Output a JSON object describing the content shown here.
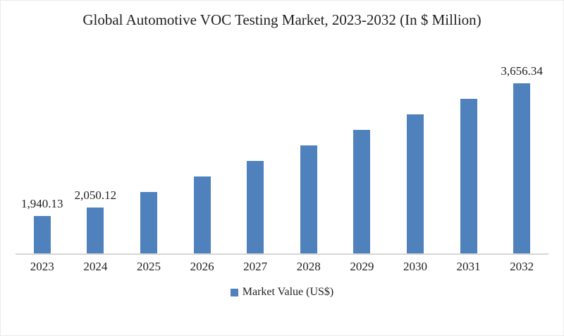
{
  "chart": {
    "title": "Global Automotive VOC Testing Market, 2023-2032 (In $ Million)",
    "legend": {
      "label": "Market Value (US$)"
    },
    "colors": {
      "bar": "#4F81BD",
      "axis_line": "#d6d6d6",
      "text": "#1f1f1f",
      "background": "#ffffff"
    }
  },
  "chart_data": {
    "type": "bar",
    "title": "Global Automotive VOC Testing Market, 2023-2032 (In $ Million)",
    "xlabel": "",
    "ylabel": "",
    "categories": [
      "2023",
      "2024",
      "2025",
      "2026",
      "2027",
      "2028",
      "2029",
      "2030",
      "2031",
      "2032"
    ],
    "series": [
      {
        "name": "Market Value (US$)",
        "values": [
          1940.13,
          2050.12,
          2250.9,
          2451.68,
          2652.45,
          2853.23,
          3054.01,
          3254.79,
          3455.56,
          3656.34
        ]
      }
    ],
    "data_labels": [
      "1,940.13",
      "2,050.12",
      "",
      "",
      "",
      "",
      "",
      "",
      "",
      "3,656.34"
    ],
    "ylim": [
      1450,
      4200
    ],
    "grid": false,
    "y_axis_visible": false,
    "legend_position": "bottom"
  }
}
